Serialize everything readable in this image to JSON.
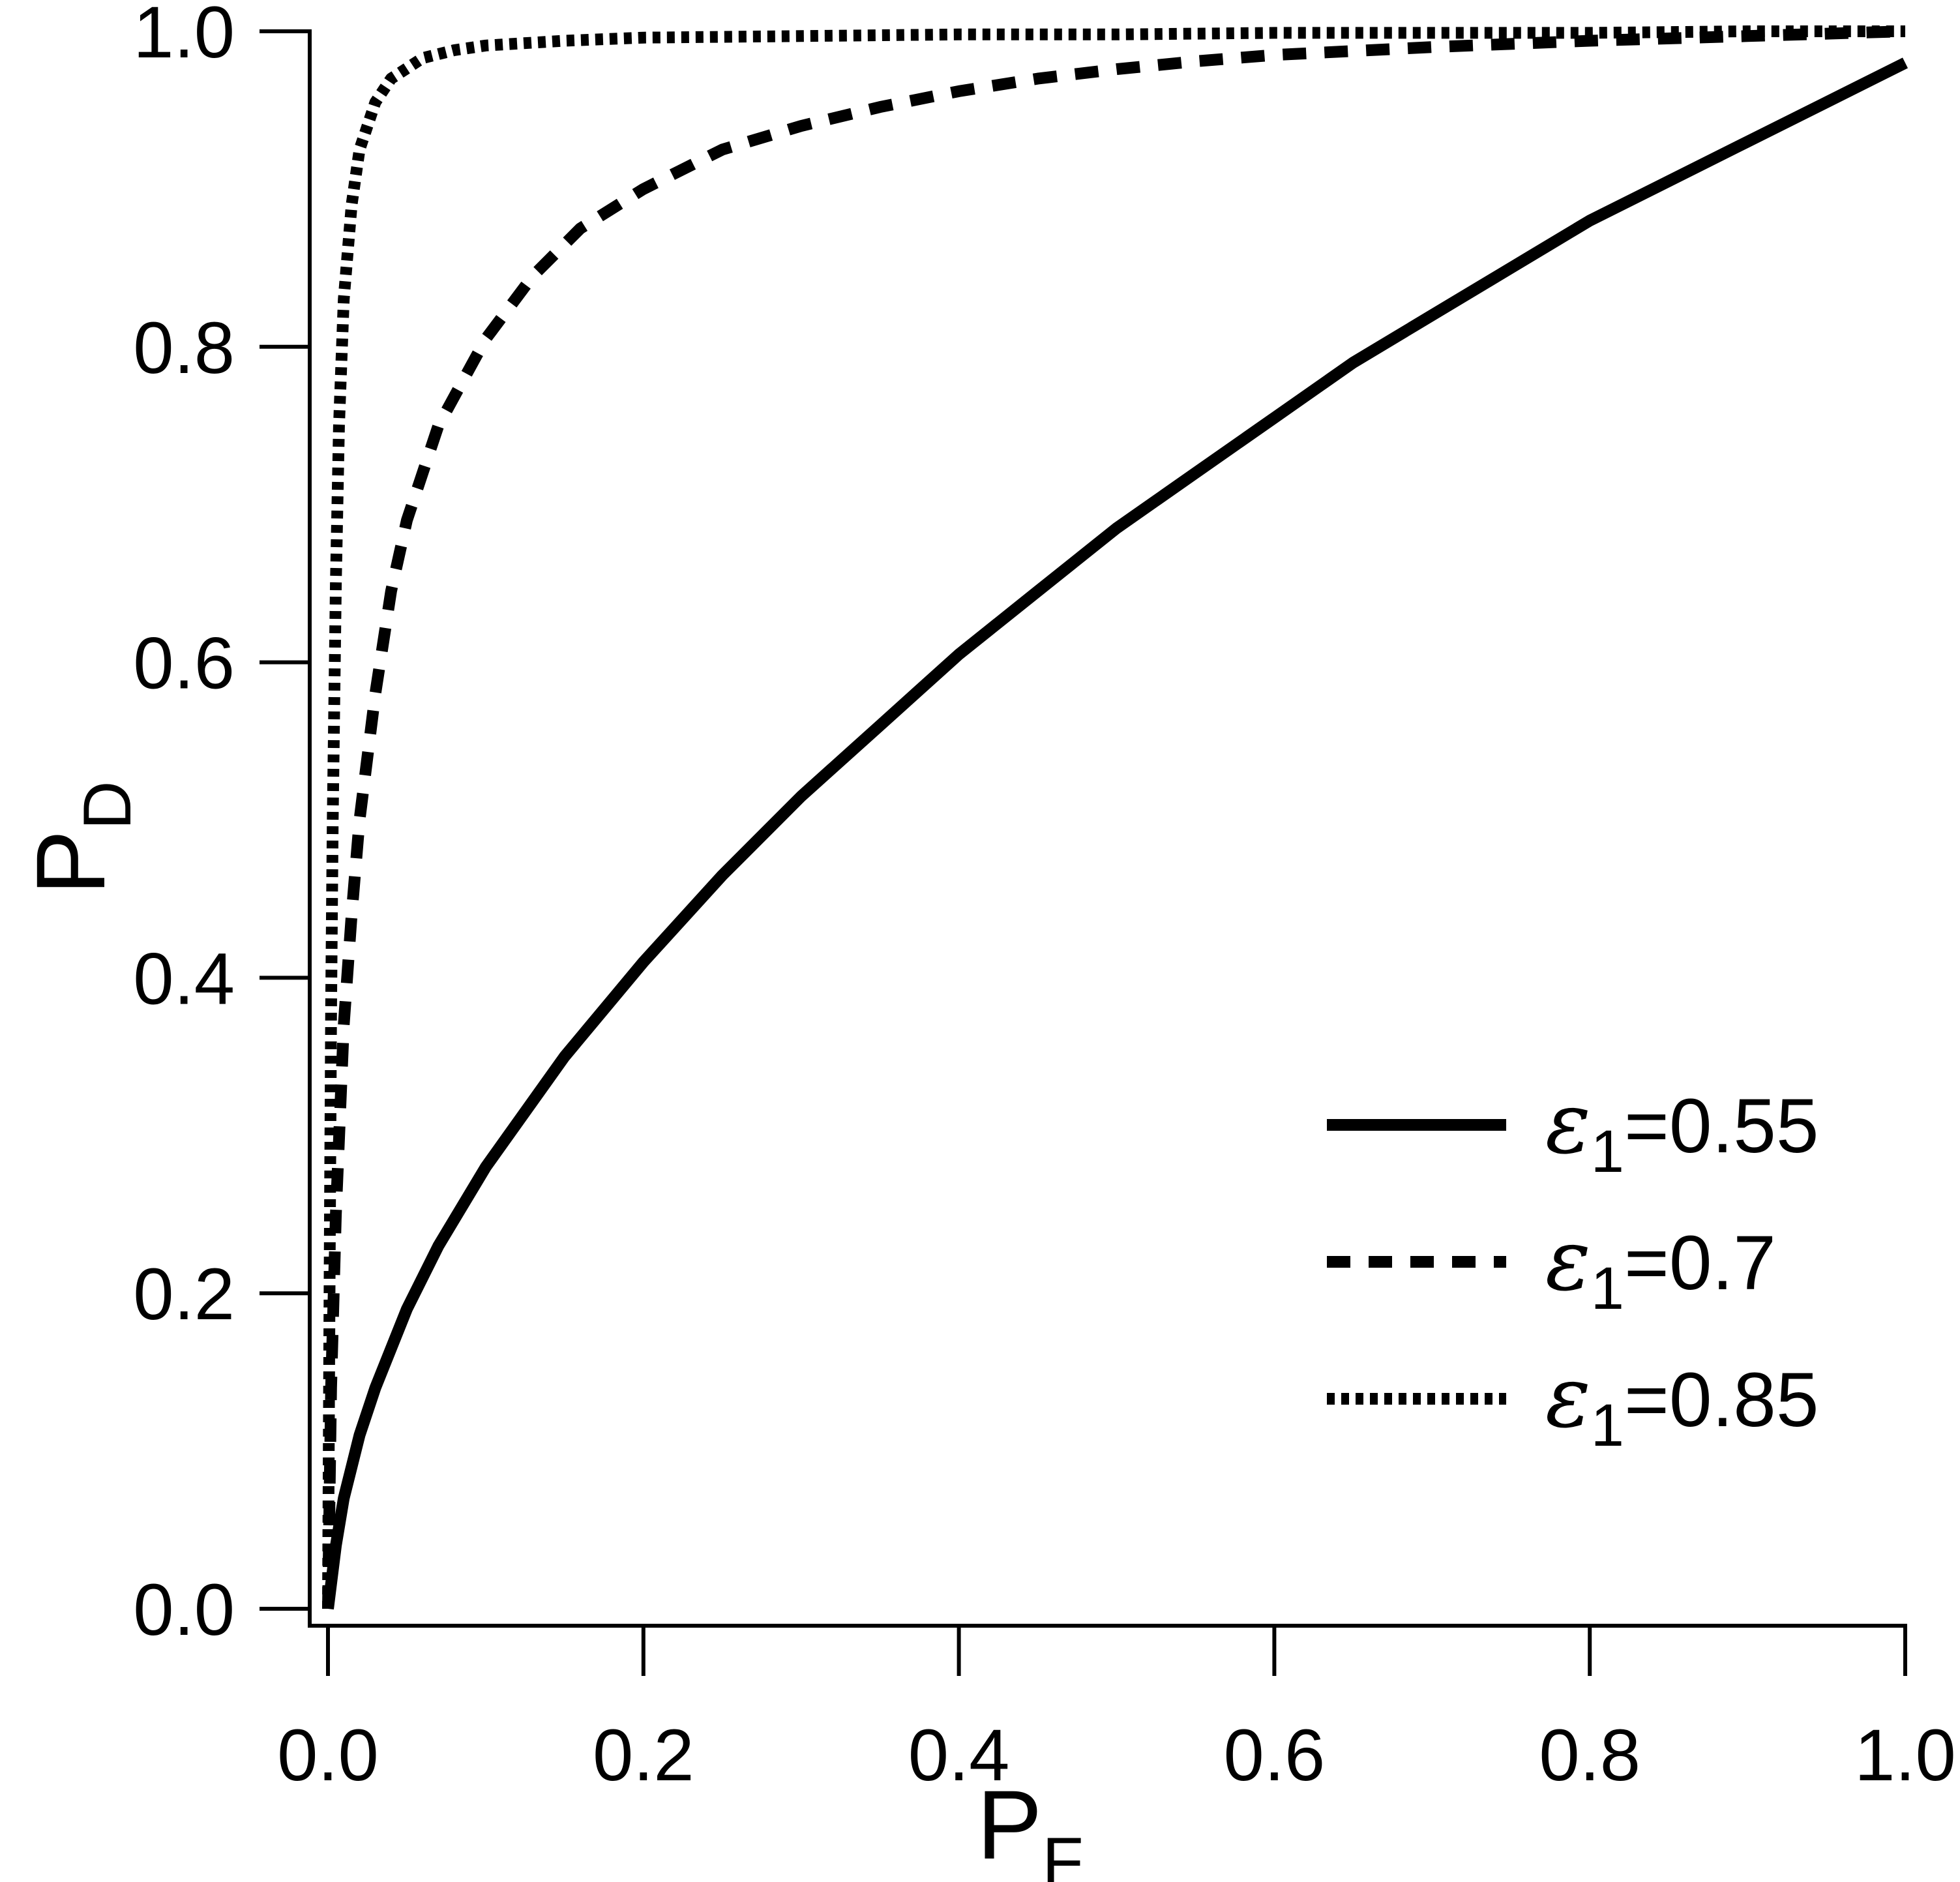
{
  "chart_data": {
    "type": "line",
    "xlabel": {
      "main": "P",
      "sub": "F"
    },
    "ylabel": {
      "main": "P",
      "sub": "D"
    },
    "xlim": [
      0,
      1
    ],
    "ylim": [
      0,
      1
    ],
    "xticks": [
      "0.0",
      "0.2",
      "0.4",
      "0.6",
      "0.8",
      "1.0"
    ],
    "yticks": [
      "0.0",
      "0.2",
      "0.4",
      "0.6",
      "0.8",
      "1.0"
    ],
    "grid": false,
    "legend_position": "bottom-right",
    "series": [
      {
        "name": "ε1=0.55",
        "legend": {
          "symbol": "ε",
          "sub": "1",
          "text": "=0.55"
        },
        "style": "solid",
        "color": "#000000",
        "x": [
          0,
          0.005,
          0.01,
          0.02,
          0.03,
          0.05,
          0.07,
          0.1,
          0.15,
          0.2,
          0.25,
          0.3,
          0.35,
          0.4,
          0.45,
          0.5,
          0.55,
          0.6,
          0.65,
          0.7,
          0.75,
          0.8,
          0.85,
          0.9,
          0.95,
          1.0
        ],
        "y": [
          0,
          0.04,
          0.07,
          0.11,
          0.14,
          0.19,
          0.23,
          0.28,
          0.35,
          0.41,
          0.465,
          0.515,
          0.56,
          0.605,
          0.645,
          0.685,
          0.72,
          0.755,
          0.79,
          0.82,
          0.85,
          0.88,
          0.905,
          0.93,
          0.955,
          0.98
        ]
      },
      {
        "name": "ε1=0.7",
        "legend": {
          "symbol": "ε",
          "sub": "1",
          "text": "=0.7"
        },
        "style": "dashed",
        "color": "#000000",
        "x": [
          0,
          0.002,
          0.005,
          0.01,
          0.015,
          0.02,
          0.03,
          0.04,
          0.05,
          0.07,
          0.1,
          0.13,
          0.16,
          0.2,
          0.25,
          0.3,
          0.35,
          0.4,
          0.45,
          0.5,
          0.55,
          0.6,
          0.7,
          0.8,
          0.9,
          1.0
        ],
        "y": [
          0,
          0.14,
          0.25,
          0.37,
          0.44,
          0.5,
          0.58,
          0.645,
          0.69,
          0.75,
          0.805,
          0.845,
          0.875,
          0.9,
          0.925,
          0.94,
          0.952,
          0.962,
          0.97,
          0.976,
          0.981,
          0.985,
          0.99,
          0.994,
          0.997,
          1.0
        ]
      },
      {
        "name": "ε1=0.85",
        "legend": {
          "symbol": "ε",
          "sub": "1",
          "text": "=0.85"
        },
        "style": "dotted",
        "color": "#000000",
        "x": [
          0,
          0.001,
          0.002,
          0.003,
          0.005,
          0.007,
          0.01,
          0.015,
          0.02,
          0.03,
          0.04,
          0.06,
          0.08,
          0.1,
          0.15,
          0.2,
          0.3,
          0.4,
          0.5,
          0.6,
          0.7,
          0.8,
          0.9,
          1.0
        ],
        "y": [
          0,
          0.2,
          0.38,
          0.5,
          0.65,
          0.75,
          0.83,
          0.89,
          0.925,
          0.955,
          0.97,
          0.983,
          0.988,
          0.991,
          0.994,
          0.996,
          0.997,
          0.998,
          0.998,
          0.999,
          0.999,
          0.999,
          1.0,
          1.0
        ]
      }
    ]
  }
}
